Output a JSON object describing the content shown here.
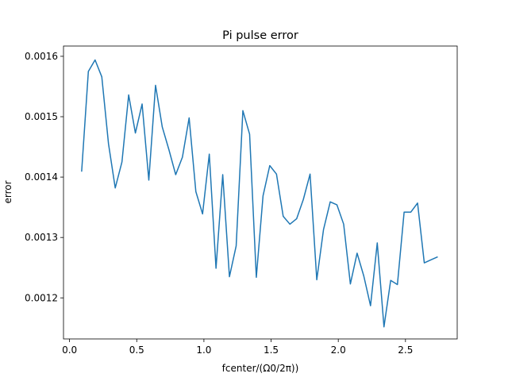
{
  "chart_data": {
    "type": "line",
    "title": "Pi pulse error",
    "xlabel": "fcenter/(Ω0/2π))",
    "ylabel": "error",
    "xlim": [
      -0.045,
      2.885
    ],
    "ylim": [
      0.001132,
      0.001617
    ],
    "xticks": [
      0.0,
      0.5,
      1.0,
      1.5,
      2.0,
      2.5
    ],
    "xtick_labels": [
      "0.0",
      "0.5",
      "1.0",
      "1.5",
      "2.0",
      "2.5"
    ],
    "yticks": [
      0.0012,
      0.0013,
      0.0014,
      0.0015,
      0.0016
    ],
    "ytick_labels": [
      "0.0012",
      "0.0013",
      "0.0014",
      "0.0015",
      "0.0016"
    ],
    "grid": false,
    "series": [
      {
        "color": "#1f77b4",
        "x": [
          0.09,
          0.14,
          0.19,
          0.24,
          0.29,
          0.34,
          0.39,
          0.44,
          0.49,
          0.54,
          0.59,
          0.64,
          0.69,
          0.74,
          0.79,
          0.84,
          0.89,
          0.94,
          0.99,
          1.04,
          1.09,
          1.14,
          1.19,
          1.24,
          1.29,
          1.34,
          1.39,
          1.44,
          1.49,
          1.54,
          1.59,
          1.64,
          1.69,
          1.74,
          1.79,
          1.84,
          1.89,
          1.94,
          1.99,
          2.04,
          2.09,
          2.14,
          2.19,
          2.24,
          2.29,
          2.34,
          2.39,
          2.44,
          2.49,
          2.54,
          2.59,
          2.64,
          2.69,
          2.74
        ],
        "y": [
          0.001409,
          0.001575,
          0.001594,
          0.001566,
          0.001455,
          0.001382,
          0.001425,
          0.001536,
          0.001473,
          0.001521,
          0.001395,
          0.001552,
          0.001483,
          0.001445,
          0.001404,
          0.001433,
          0.001498,
          0.001376,
          0.001339,
          0.001438,
          0.001249,
          0.001404,
          0.001235,
          0.001286,
          0.00151,
          0.001471,
          0.001234,
          0.001369,
          0.001419,
          0.001405,
          0.001335,
          0.001322,
          0.001331,
          0.001363,
          0.001405,
          0.00123,
          0.001313,
          0.001359,
          0.001354,
          0.001322,
          0.001223,
          0.001274,
          0.001236,
          0.001187,
          0.001291,
          0.001152,
          0.001229,
          0.001222,
          0.001342,
          0.001342,
          0.001357,
          0.001258,
          0.001263,
          0.001268
        ]
      }
    ]
  }
}
